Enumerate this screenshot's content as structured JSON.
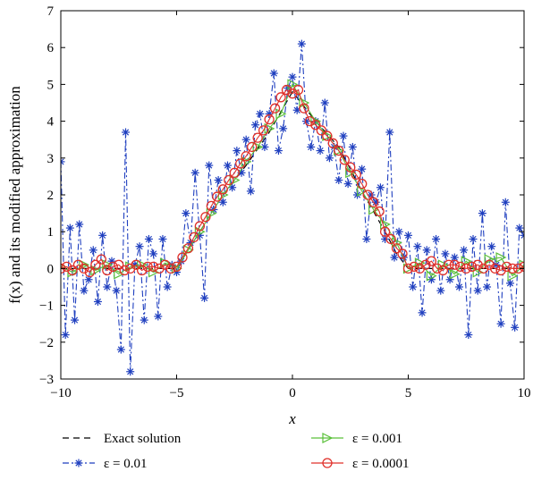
{
  "chart_data": {
    "type": "line",
    "xlabel": "x",
    "ylabel": "f(x) and its modified approximation",
    "xlim": [
      -10,
      10
    ],
    "ylim": [
      -3,
      7
    ],
    "xticks": [
      -10,
      -5,
      0,
      5,
      10
    ],
    "yticks": [
      -3,
      -2,
      -1,
      0,
      1,
      2,
      3,
      4,
      5,
      6,
      7
    ],
    "grid": false,
    "legend_position": "bottom",
    "series": [
      {
        "name": "Exact solution",
        "style": "dashed",
        "color": "#000000",
        "x": [
          -10,
          -5,
          -4,
          -3,
          -2,
          -1,
          0,
          1,
          2,
          3,
          4,
          4.5,
          5,
          10
        ],
        "y": [
          0,
          0,
          1,
          2,
          2.8,
          3.7,
          4.8,
          4.0,
          3.3,
          2.1,
          1.0,
          0.4,
          0,
          0
        ]
      },
      {
        "name": "ε = 0.01",
        "style": "dashdot",
        "marker": "asterisk",
        "color": "#1f3fbf",
        "x": [
          -10,
          -9.8,
          -9.6,
          -9.4,
          -9.2,
          -9,
          -8.8,
          -8.6,
          -8.4,
          -8.2,
          -8,
          -7.8,
          -7.6,
          -7.4,
          -7.2,
          -7,
          -6.8,
          -6.6,
          -6.4,
          -6.2,
          -6,
          -5.8,
          -5.6,
          -5.4,
          -5.2,
          -5,
          -4.8,
          -4.6,
          -4.4,
          -4.2,
          -4,
          -3.8,
          -3.6,
          -3.4,
          -3.2,
          -3,
          -2.8,
          -2.6,
          -2.4,
          -2.2,
          -2,
          -1.8,
          -1.6,
          -1.4,
          -1.2,
          -1,
          -0.8,
          -0.6,
          -0.4,
          -0.2,
          0,
          0.2,
          0.4,
          0.6,
          0.8,
          1,
          1.2,
          1.4,
          1.6,
          1.8,
          2,
          2.2,
          2.4,
          2.6,
          2.8,
          3,
          3.2,
          3.4,
          3.6,
          3.8,
          4,
          4.2,
          4.4,
          4.6,
          4.8,
          5,
          5.2,
          5.4,
          5.6,
          5.8,
          6,
          6.2,
          6.4,
          6.6,
          6.8,
          7,
          7.2,
          7.4,
          7.6,
          7.8,
          8,
          8.2,
          8.4,
          8.6,
          8.8,
          9,
          9.2,
          9.4,
          9.6,
          9.8,
          10
        ],
        "y": [
          2.9,
          -1.8,
          1.1,
          -1.4,
          1.2,
          -0.6,
          -0.3,
          0.5,
          -0.9,
          0.9,
          -0.5,
          0.2,
          -0.6,
          -2.2,
          3.7,
          -2.8,
          0.1,
          0.6,
          -1.4,
          0.8,
          0.4,
          -1.3,
          0.8,
          -0.5,
          0.1,
          -0.1,
          0.2,
          1.5,
          0.7,
          2.6,
          0.9,
          -0.8,
          2.8,
          1.6,
          2.4,
          1.8,
          2.8,
          2.2,
          3.2,
          2.6,
          3.5,
          2.1,
          3.9,
          4.2,
          3.3,
          4.2,
          5.3,
          3.2,
          3.8,
          4.9,
          5.2,
          4.3,
          6.1,
          4.0,
          3.3,
          4.0,
          3.2,
          4.5,
          3.0,
          3.3,
          2.4,
          3.6,
          2.3,
          3.3,
          2.0,
          2.7,
          0.8,
          2.0,
          1.8,
          2.2,
          0.8,
          3.7,
          0.3,
          1.0,
          0.3,
          0.9,
          -0.5,
          0.6,
          -1.2,
          0.5,
          -0.3,
          0.8,
          -0.6,
          0.4,
          -0.3,
          0.3,
          -0.5,
          0.5,
          -1.8,
          0.8,
          -0.6,
          1.5,
          -0.5,
          0.6,
          0.1,
          -1.5,
          1.8,
          -0.4,
          -1.6,
          1.1,
          0.9
        ]
      },
      {
        "name": "ε = 0.001",
        "style": "solid",
        "marker": "triangle-right",
        "color": "#5ac03a",
        "x": [
          -10,
          -9.5,
          -9,
          -8.5,
          -8,
          -7.5,
          -7,
          -6.5,
          -6,
          -5.5,
          -5,
          -4.5,
          -4,
          -3.5,
          -3,
          -2.5,
          -2,
          -1.5,
          -1,
          -0.5,
          0,
          0.5,
          1,
          1.5,
          2,
          2.5,
          3,
          3.5,
          4,
          4.5,
          5,
          5.5,
          6,
          6.5,
          7,
          7.5,
          8,
          8.5,
          9,
          9.5,
          10
        ],
        "y": [
          0.05,
          -0.1,
          0.1,
          -0.05,
          0.1,
          -0.15,
          0.05,
          0.1,
          -0.1,
          0.15,
          0.0,
          0.5,
          1.0,
          1.5,
          2.0,
          2.4,
          2.9,
          3.3,
          3.8,
          4.2,
          5.0,
          4.5,
          4.0,
          3.6,
          3.2,
          2.6,
          2.1,
          1.6,
          1.2,
          0.7,
          0.0,
          0.15,
          -0.2,
          0.1,
          -0.15,
          0.2,
          -0.1,
          0.25,
          0.3,
          -0.2,
          0.1
        ]
      },
      {
        "name": "ε = 0.0001",
        "style": "solid",
        "marker": "circle",
        "color": "#e0302a",
        "x": [
          -10,
          -9.75,
          -9.5,
          -9.25,
          -9,
          -8.75,
          -8.5,
          -8.25,
          -8,
          -7.75,
          -7.5,
          -7.25,
          -7,
          -6.75,
          -6.5,
          -6.25,
          -6,
          -5.75,
          -5.5,
          -5.25,
          -5,
          -4.75,
          -4.5,
          -4.25,
          -4,
          -3.75,
          -3.5,
          -3.25,
          -3,
          -2.75,
          -2.5,
          -2.25,
          -2,
          -1.75,
          -1.5,
          -1.25,
          -1,
          -0.75,
          -0.5,
          -0.25,
          0,
          0.25,
          0.5,
          0.75,
          1,
          1.25,
          1.5,
          1.75,
          2,
          2.25,
          2.5,
          2.75,
          3,
          3.25,
          3.5,
          3.75,
          4,
          4.25,
          4.5,
          4.75,
          5,
          5.25,
          5.5,
          5.75,
          6,
          6.25,
          6.5,
          6.75,
          7,
          7.25,
          7.5,
          7.75,
          8,
          8.25,
          8.5,
          8.75,
          9,
          9.25,
          9.5,
          9.75,
          10
        ],
        "y": [
          0.0,
          0.05,
          -0.05,
          0.1,
          0.0,
          -0.1,
          0.1,
          0.25,
          -0.05,
          0.05,
          0.1,
          -0.05,
          0.0,
          0.1,
          -0.05,
          0.05,
          0.05,
          0.0,
          0.1,
          0.0,
          0.05,
          0.3,
          0.55,
          0.85,
          1.15,
          1.4,
          1.7,
          1.95,
          2.15,
          2.4,
          2.6,
          2.85,
          3.05,
          3.3,
          3.55,
          3.75,
          4.05,
          4.35,
          4.65,
          4.85,
          4.75,
          4.85,
          4.35,
          4.0,
          3.9,
          3.75,
          3.6,
          3.4,
          3.2,
          2.95,
          2.75,
          2.55,
          2.3,
          2.0,
          1.8,
          1.55,
          1.0,
          0.8,
          0.55,
          0.4,
          0.0,
          0.05,
          0.0,
          0.1,
          0.2,
          0.0,
          -0.05,
          0.1,
          0.1,
          0.05,
          0.0,
          0.05,
          0.1,
          0.0,
          0.1,
          0.0,
          -0.05,
          0.05,
          0.0,
          0.0,
          0.05
        ]
      }
    ]
  }
}
